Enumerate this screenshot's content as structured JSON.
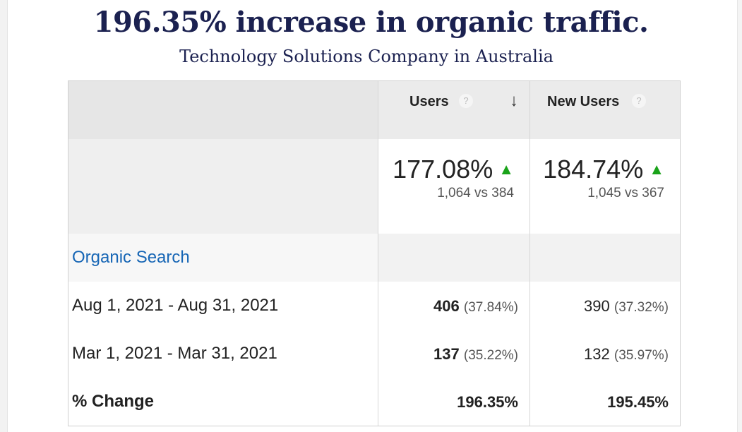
{
  "headline": "196.35% increase in organic traffic.",
  "subheadline": "Technology Solutions Company in Australia",
  "table": {
    "columns": [
      {
        "title": "Users",
        "help": "?",
        "sort": "↓"
      },
      {
        "title": "New Users",
        "help": "?"
      }
    ],
    "summary": [
      {
        "pct": "177.08%",
        "compare": "1,064 vs 384"
      },
      {
        "pct": "184.74%",
        "compare": "1,045 vs 367"
      }
    ],
    "segment": "Organic Search",
    "rows": [
      {
        "label": "Aug 1, 2021 - Aug 31, 2021",
        "users": "406",
        "users_pct": "(37.84%)",
        "new_users": "390",
        "new_users_pct": "(37.32%)"
      },
      {
        "label": "Mar 1, 2021 - Mar 31, 2021",
        "users": "137",
        "users_pct": "(35.22%)",
        "new_users": "132",
        "new_users_pct": "(35.97%)"
      }
    ],
    "change": {
      "label": "% Change",
      "users": "196.35%",
      "new_users": "195.45%"
    }
  },
  "icons": {
    "help": "question-circle-icon",
    "sort": "arrow-down-icon",
    "trend": "arrow-up-icon"
  },
  "colors": {
    "title": "#1b2150",
    "link": "#1766b5",
    "trend_up": "#1aa31a"
  }
}
